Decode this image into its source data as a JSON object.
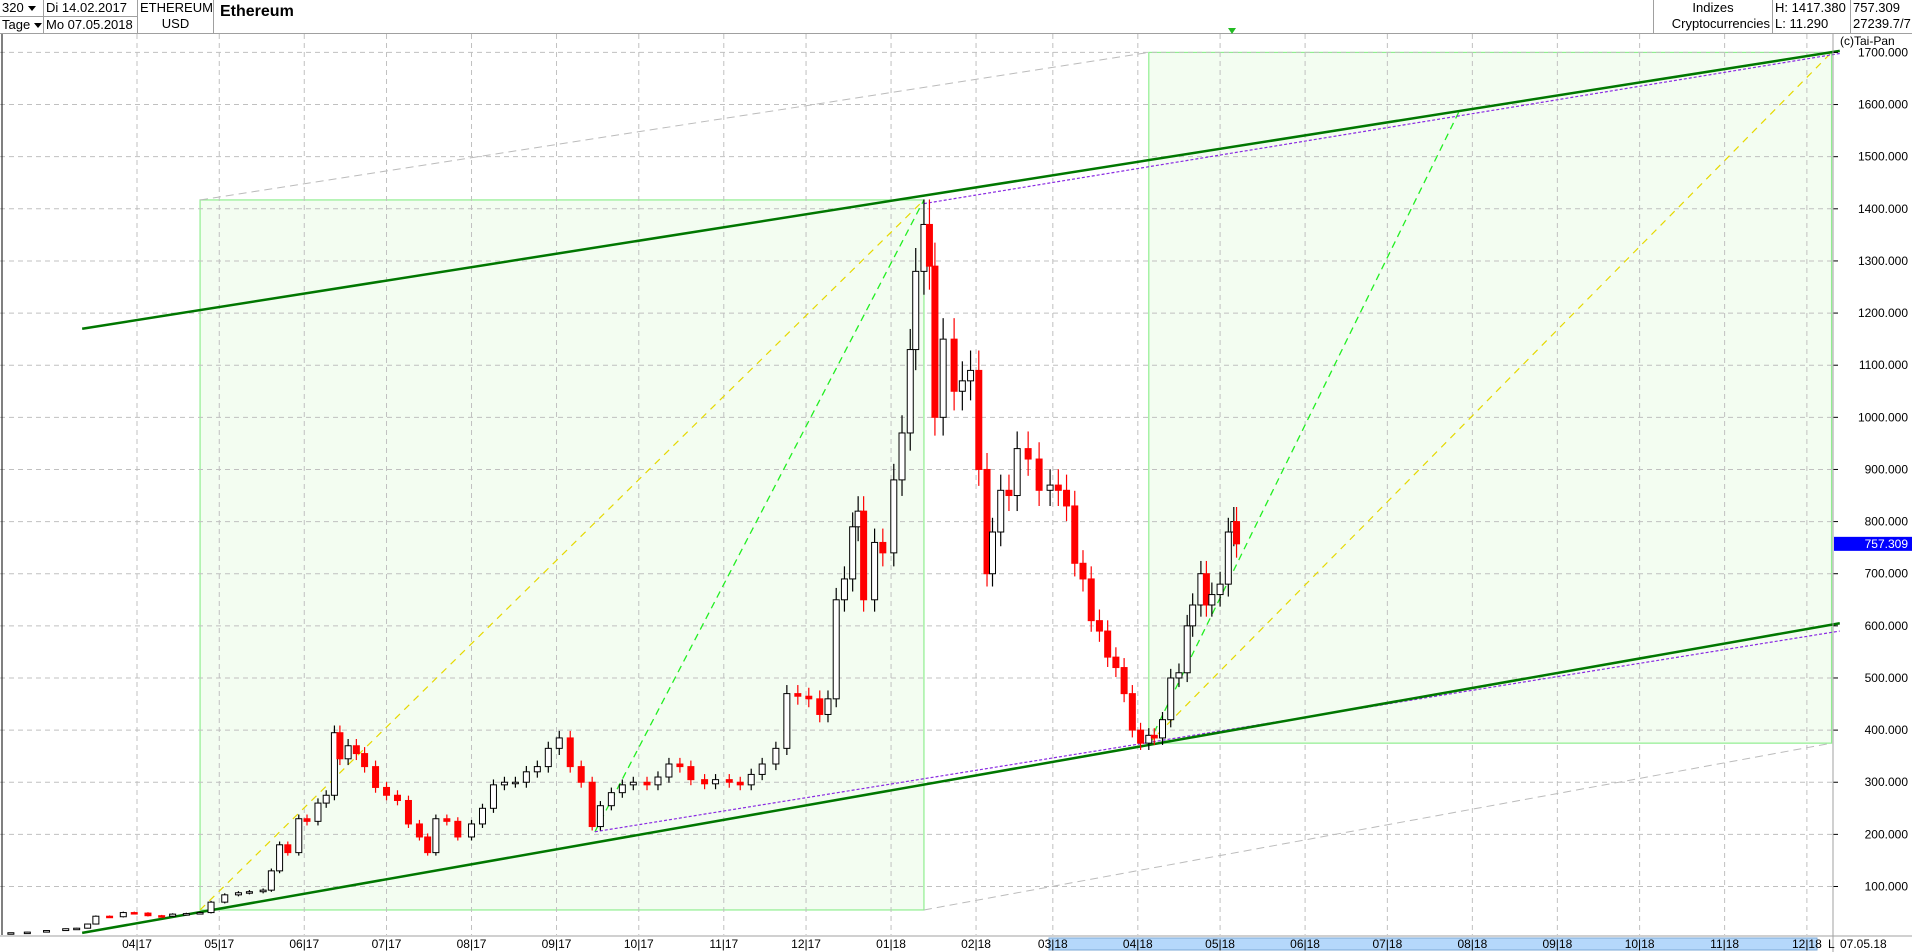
{
  "header": {
    "period_count": "320",
    "period_unit": "Tage",
    "date_from": "Di 14.02.2017",
    "date_to": "Mo 07.05.2018",
    "symbol": "ETHEREUM",
    "currency": "USD",
    "title": "Ethereum",
    "category_1": "Indizes",
    "category_2": "Cryptocurrencies",
    "high": "H: 1417.380",
    "low": "L: 11.290",
    "last": "757.309",
    "extra": "27239.7/7"
  },
  "copyright": "(c)Tai-Pan",
  "current_price_label": "757.309",
  "end_date_label": "07.05.18",
  "scroll_marker": "L",
  "colors": {
    "up": "#ffffff",
    "down": "#ff0000",
    "channel": "#007700",
    "box": "#f2fdf0",
    "box_border": "#90ee90",
    "yellow": "#e6d800",
    "green_dash": "#22ee22",
    "purple": "#8a2be2",
    "price_tag": "#0000ff",
    "scroll": "#b5d8fb"
  },
  "chart_data": {
    "type": "candlestick",
    "y_ticks": [
      "100.000",
      "200.000",
      "300.000",
      "400.000",
      "500.000",
      "600.000",
      "700.000",
      "800.000",
      "900.000",
      "1000.000",
      "1100.000",
      "1200.000",
      "1300.000",
      "1400.000",
      "1500.000",
      "1600.000",
      "1700.000"
    ],
    "ylim": [
      0,
      1720
    ],
    "x_ticks": [
      "04|17",
      "05|17",
      "06|17",
      "07|17",
      "08|17",
      "09|17",
      "10|17",
      "11|17",
      "12|17",
      "01|18",
      "02|18",
      "03|18",
      "04|18",
      "05|18",
      "06|18",
      "07|18",
      "08|18",
      "09|18",
      "10|18",
      "11|18",
      "12|18"
    ],
    "grid": true,
    "closes": [
      [
        "2017-02-14",
        11.3
      ],
      [
        "2017-02-20",
        12.5
      ],
      [
        "2017-02-27",
        15.5
      ],
      [
        "2017-03-06",
        19
      ],
      [
        "2017-03-10",
        20
      ],
      [
        "2017-03-14",
        28
      ],
      [
        "2017-03-17",
        43
      ],
      [
        "2017-03-22",
        42
      ],
      [
        "2017-03-27",
        50
      ],
      [
        "2017-03-31",
        49
      ],
      [
        "2017-04-05",
        44
      ],
      [
        "2017-04-10",
        43
      ],
      [
        "2017-04-14",
        47
      ],
      [
        "2017-04-19",
        48
      ],
      [
        "2017-04-24",
        50
      ],
      [
        "2017-04-28",
        70
      ],
      [
        "2017-05-03",
        84
      ],
      [
        "2017-05-08",
        88
      ],
      [
        "2017-05-12",
        90
      ],
      [
        "2017-05-17",
        93
      ],
      [
        "2017-05-20",
        130
      ],
      [
        "2017-05-23",
        180
      ],
      [
        "2017-05-26",
        165
      ],
      [
        "2017-05-30",
        230
      ],
      [
        "2017-06-02",
        225
      ],
      [
        "2017-06-06",
        260
      ],
      [
        "2017-06-09",
        275
      ],
      [
        "2017-06-12",
        395
      ],
      [
        "2017-06-14",
        345
      ],
      [
        "2017-06-17",
        370
      ],
      [
        "2017-06-20",
        355
      ],
      [
        "2017-06-23",
        330
      ],
      [
        "2017-06-27",
        290
      ],
      [
        "2017-07-01",
        275
      ],
      [
        "2017-07-05",
        265
      ],
      [
        "2017-07-09",
        220
      ],
      [
        "2017-07-13",
        195
      ],
      [
        "2017-07-16",
        165
      ],
      [
        "2017-07-19",
        230
      ],
      [
        "2017-07-23",
        225
      ],
      [
        "2017-07-27",
        195
      ],
      [
        "2017-08-01",
        220
      ],
      [
        "2017-08-05",
        250
      ],
      [
        "2017-08-09",
        295
      ],
      [
        "2017-08-13",
        300
      ],
      [
        "2017-08-17",
        300
      ],
      [
        "2017-08-21",
        320
      ],
      [
        "2017-08-25",
        330
      ],
      [
        "2017-08-29",
        365
      ],
      [
        "2017-09-02",
        385
      ],
      [
        "2017-09-06",
        330
      ],
      [
        "2017-09-10",
        300
      ],
      [
        "2017-09-14",
        215
      ],
      [
        "2017-09-17",
        255
      ],
      [
        "2017-09-21",
        280
      ],
      [
        "2017-09-25",
        295
      ],
      [
        "2017-09-29",
        300
      ],
      [
        "2017-10-04",
        295
      ],
      [
        "2017-10-08",
        310
      ],
      [
        "2017-10-12",
        335
      ],
      [
        "2017-10-16",
        330
      ],
      [
        "2017-10-20",
        305
      ],
      [
        "2017-10-25",
        297
      ],
      [
        "2017-10-29",
        305
      ],
      [
        "2017-11-03",
        300
      ],
      [
        "2017-11-07",
        295
      ],
      [
        "2017-11-11",
        315
      ],
      [
        "2017-11-15",
        335
      ],
      [
        "2017-11-20",
        365
      ],
      [
        "2017-11-24",
        470
      ],
      [
        "2017-11-28",
        465
      ],
      [
        "2017-12-02",
        460
      ],
      [
        "2017-12-06",
        430
      ],
      [
        "2017-12-09",
        460
      ],
      [
        "2017-12-12",
        650
      ],
      [
        "2017-12-15",
        690
      ],
      [
        "2017-12-18",
        790
      ],
      [
        "2017-12-20",
        820
      ],
      [
        "2017-12-22",
        650
      ],
      [
        "2017-12-26",
        760
      ],
      [
        "2017-12-29",
        740
      ],
      [
        "2018-01-02",
        880
      ],
      [
        "2018-01-05",
        970
      ],
      [
        "2018-01-08",
        1130
      ],
      [
        "2018-01-10",
        1280
      ],
      [
        "2018-01-13",
        1370
      ],
      [
        "2018-01-15",
        1290
      ],
      [
        "2018-01-17",
        1000
      ],
      [
        "2018-01-20",
        1150
      ],
      [
        "2018-01-24",
        1050
      ],
      [
        "2018-01-27",
        1070
      ],
      [
        "2018-01-30",
        1090
      ],
      [
        "2018-02-02",
        900
      ],
      [
        "2018-02-05",
        700
      ],
      [
        "2018-02-07",
        780
      ],
      [
        "2018-02-10",
        860
      ],
      [
        "2018-02-13",
        850
      ],
      [
        "2018-02-16",
        940
      ],
      [
        "2018-02-20",
        920
      ],
      [
        "2018-02-24",
        860
      ],
      [
        "2018-02-28",
        870
      ],
      [
        "2018-03-03",
        860
      ],
      [
        "2018-03-06",
        830
      ],
      [
        "2018-03-09",
        720
      ],
      [
        "2018-03-12",
        690
      ],
      [
        "2018-03-15",
        610
      ],
      [
        "2018-03-18",
        590
      ],
      [
        "2018-03-21",
        540
      ],
      [
        "2018-03-24",
        520
      ],
      [
        "2018-03-27",
        470
      ],
      [
        "2018-03-30",
        400
      ],
      [
        "2018-04-02",
        375
      ],
      [
        "2018-04-05",
        390
      ],
      [
        "2018-04-07",
        385
      ],
      [
        "2018-04-10",
        420
      ],
      [
        "2018-04-13",
        500
      ],
      [
        "2018-04-16",
        510
      ],
      [
        "2018-04-19",
        600
      ],
      [
        "2018-04-21",
        640
      ],
      [
        "2018-04-24",
        700
      ],
      [
        "2018-04-26",
        640
      ],
      [
        "2018-04-28",
        660
      ],
      [
        "2018-05-01",
        680
      ],
      [
        "2018-05-04",
        780
      ],
      [
        "2018-05-06",
        800
      ],
      [
        "2018-05-07",
        757.3
      ]
    ],
    "lines": [
      {
        "kind": "channel-lower",
        "from": [
          "2017-03-12",
          11
        ],
        "to": [
          "2018-12-13",
          605
        ]
      },
      {
        "kind": "channel-upper",
        "from": [
          "2017-03-12",
          1170
        ],
        "to": [
          "2018-12-13",
          1703
        ]
      },
      {
        "kind": "purple-lower",
        "from": [
          "2017-09-15",
          205
        ],
        "to": [
          "2018-12-13",
          590
        ]
      },
      {
        "kind": "purple-upper",
        "from": [
          "2018-01-13",
          1410
        ],
        "to": [
          "2018-12-13",
          1698
        ]
      },
      {
        "kind": "yellow",
        "from": [
          "2017-04-24",
          55
        ],
        "to": [
          "2018-01-13",
          1417
        ]
      },
      {
        "kind": "yellow",
        "from": [
          "2018-04-05",
          375
        ],
        "to": [
          "2018-12-10",
          1700
        ]
      },
      {
        "kind": "green-dash",
        "from": [
          "2017-09-15",
          205
        ],
        "to": [
          "2018-01-13",
          1417
        ]
      },
      {
        "kind": "green-dash",
        "from": [
          "2018-04-05",
          375
        ],
        "to": [
          "2018-07-27",
          1585
        ]
      },
      {
        "kind": "gray-dash",
        "from": [
          "2017-04-24",
          1417
        ],
        "to": [
          "2018-04-05",
          1700
        ]
      },
      {
        "kind": "gray-dash",
        "from": [
          "2018-01-13",
          55
        ],
        "to": [
          "2018-12-10",
          375
        ]
      }
    ],
    "boxes": [
      {
        "from": [
          "2017-04-24",
          55
        ],
        "to": [
          "2018-01-13",
          1417
        ]
      },
      {
        "from": [
          "2018-04-05",
          375
        ],
        "to": [
          "2018-12-10",
          1700
        ]
      }
    ],
    "last_price": 757.309
  }
}
